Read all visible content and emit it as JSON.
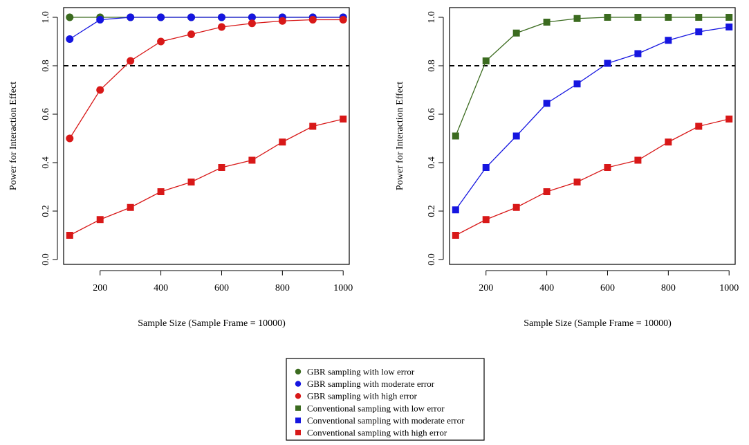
{
  "chart_data": [
    {
      "type": "line",
      "xlabel": "Sample Size (Sample Frame = 10000)",
      "ylabel": "Power for Interaction Effect",
      "xlim": [
        80,
        1020
      ],
      "ylim": [
        -0.02,
        1.04
      ],
      "xticks": [
        200,
        400,
        600,
        800,
        1000
      ],
      "yticks": [
        0.0,
        0.2,
        0.4,
        0.6,
        0.8,
        1.0
      ],
      "reference_line": 0.8,
      "x": [
        100,
        200,
        300,
        400,
        500,
        600,
        700,
        800,
        900,
        1000
      ],
      "series": [
        {
          "name": "GBR sampling with low error",
          "marker": "circle",
          "color": "#3b6b1f",
          "values": [
            1.0,
            1.0,
            1.0,
            1.0,
            1.0,
            1.0,
            1.0,
            1.0,
            1.0,
            1.0
          ]
        },
        {
          "name": "GBR sampling with moderate error",
          "marker": "circle",
          "color": "#1515e0",
          "values": [
            0.91,
            0.99,
            1.0,
            1.0,
            1.0,
            1.0,
            1.0,
            1.0,
            1.0,
            1.0
          ]
        },
        {
          "name": "GBR sampling with high error",
          "marker": "circle",
          "color": "#d81818",
          "values": [
            0.5,
            0.7,
            0.82,
            0.9,
            0.93,
            0.96,
            0.975,
            0.985,
            0.99,
            0.99
          ]
        },
        {
          "name": "Conventional sampling with high error",
          "marker": "square",
          "color": "#d81818",
          "values": [
            0.1,
            0.165,
            0.215,
            0.28,
            0.32,
            0.38,
            0.41,
            0.485,
            0.55,
            0.58
          ]
        }
      ]
    },
    {
      "type": "line",
      "xlabel": "Sample Size (Sample Frame = 10000)",
      "ylabel": "Power for Interaction Effect",
      "xlim": [
        80,
        1020
      ],
      "ylim": [
        -0.02,
        1.04
      ],
      "xticks": [
        200,
        400,
        600,
        800,
        1000
      ],
      "yticks": [
        0.0,
        0.2,
        0.4,
        0.6,
        0.8,
        1.0
      ],
      "reference_line": 0.8,
      "x": [
        100,
        200,
        300,
        400,
        500,
        600,
        700,
        800,
        900,
        1000
      ],
      "series": [
        {
          "name": "Conventional sampling with low error",
          "marker": "square",
          "color": "#3b6b1f",
          "values": [
            0.51,
            0.82,
            0.935,
            0.98,
            0.995,
            1.0,
            1.0,
            1.0,
            1.0,
            1.0
          ]
        },
        {
          "name": "Conventional sampling with moderate error",
          "marker": "square",
          "color": "#1515e0",
          "values": [
            0.205,
            0.38,
            0.51,
            0.645,
            0.725,
            0.81,
            0.85,
            0.905,
            0.94,
            0.96
          ]
        },
        {
          "name": "Conventional sampling with high error",
          "marker": "square",
          "color": "#d81818",
          "values": [
            0.1,
            0.165,
            0.215,
            0.28,
            0.32,
            0.38,
            0.41,
            0.485,
            0.55,
            0.58
          ]
        }
      ]
    }
  ],
  "legend": {
    "position": "bottom-center",
    "items": [
      {
        "label": "GBR sampling with low error",
        "marker": "circle",
        "color": "#3b6b1f"
      },
      {
        "label": "GBR sampling with moderate error",
        "marker": "circle",
        "color": "#1515e0"
      },
      {
        "label": "GBR sampling with high error",
        "marker": "circle",
        "color": "#d81818"
      },
      {
        "label": "Conventional sampling with low error",
        "marker": "square",
        "color": "#3b6b1f"
      },
      {
        "label": "Conventional sampling with moderate error",
        "marker": "square",
        "color": "#1515e0"
      },
      {
        "label": "Conventional sampling with high error",
        "marker": "square",
        "color": "#d81818"
      }
    ]
  }
}
